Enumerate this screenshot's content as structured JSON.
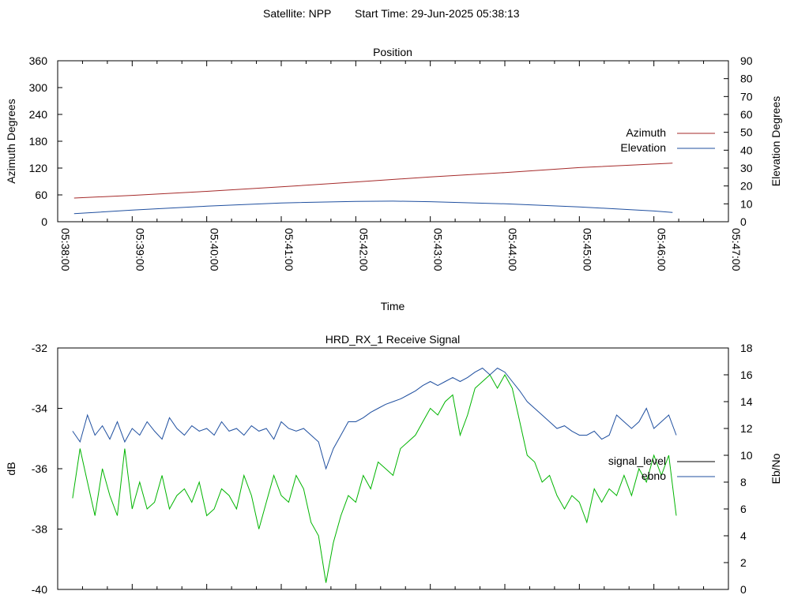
{
  "header": {
    "satellite_label": "Satellite: NPP",
    "start_time_label": "Start Time: 29-Jun-2025 05:38:13"
  },
  "colors": {
    "azimuth": "#a52a2a",
    "elevation": "#1f4f9f",
    "signal_level": "#00b400",
    "ebno": "#1f4f9f",
    "signal_level_legend": "#000000"
  },
  "chart_data": [
    {
      "type": "line",
      "title": "Position",
      "xlabel": "Time",
      "ylabel": "Azimuth Degrees",
      "y2label": "Elevation Degrees",
      "x_ticks": [
        "05:38:00",
        "05:39:00",
        "05:40:00",
        "05:41:00",
        "05:42:00",
        "05:43:00",
        "05:44:00",
        "05:45:00",
        "05:46:00",
        "05:47:00"
      ],
      "y_ticks": [
        "0",
        "60",
        "120",
        "180",
        "240",
        "300",
        "360"
      ],
      "y2_ticks": [
        "0",
        "10",
        "20",
        "30",
        "40",
        "50",
        "60",
        "70",
        "80",
        "90"
      ],
      "ylim": [
        0,
        360
      ],
      "y2lim": [
        0,
        90
      ],
      "xlim_minutes": [
        0,
        9
      ],
      "grid": false,
      "legend_position": "right",
      "series": [
        {
          "name": "Azimuth",
          "axis": "y",
          "x_minutes": [
            0.22,
            1.0,
            2.0,
            3.0,
            4.0,
            5.0,
            6.0,
            7.0,
            8.0,
            8.25
          ],
          "values": [
            53,
            59,
            68,
            78,
            89,
            100,
            110,
            121,
            129,
            131
          ]
        },
        {
          "name": "Elevation",
          "axis": "y2",
          "x_minutes": [
            0.22,
            1.0,
            2.0,
            3.0,
            4.0,
            4.5,
            5.0,
            6.0,
            7.0,
            8.0,
            8.25
          ],
          "values": [
            4.5,
            6.5,
            8.7,
            10.5,
            11.4,
            11.5,
            11.2,
            10.0,
            8.3,
            6.0,
            5.2
          ]
        }
      ]
    },
    {
      "type": "line",
      "title": "HRD_RX_1 Receive Signal",
      "ylabel": "dB",
      "y2label": "Eb/No",
      "y_ticks": [
        "-32",
        "-34",
        "-36",
        "-38",
        "-40"
      ],
      "y2_ticks": [
        "0",
        "2",
        "4",
        "6",
        "8",
        "10",
        "12",
        "14",
        "16",
        "18"
      ],
      "ylim": [
        -40,
        -32
      ],
      "y2lim": [
        0,
        18
      ],
      "xlim_minutes": [
        0,
        9
      ],
      "grid": false,
      "legend_position": "right",
      "series": [
        {
          "name": "signal_level",
          "axis": "y2",
          "x_minutes": [
            0.2,
            0.3,
            0.4,
            0.5,
            0.6,
            0.7,
            0.8,
            0.9,
            1.0,
            1.1,
            1.2,
            1.3,
            1.4,
            1.5,
            1.6,
            1.7,
            1.8,
            1.9,
            2.0,
            2.1,
            2.2,
            2.3,
            2.4,
            2.5,
            2.6,
            2.7,
            2.8,
            2.9,
            3.0,
            3.1,
            3.2,
            3.3,
            3.4,
            3.5,
            3.6,
            3.7,
            3.8,
            3.9,
            4.0,
            4.1,
            4.2,
            4.3,
            4.4,
            4.5,
            4.6,
            4.7,
            4.8,
            4.9,
            5.0,
            5.1,
            5.2,
            5.3,
            5.4,
            5.5,
            5.6,
            5.7,
            5.8,
            5.9,
            6.0,
            6.1,
            6.2,
            6.3,
            6.4,
            6.5,
            6.6,
            6.7,
            6.8,
            6.9,
            7.0,
            7.1,
            7.2,
            7.3,
            7.4,
            7.5,
            7.6,
            7.7,
            7.8,
            7.9,
            8.0,
            8.1,
            8.2,
            8.3
          ],
          "values": [
            6.8,
            10.5,
            8.0,
            5.5,
            9.0,
            7.0,
            5.5,
            10.5,
            6.0,
            8.0,
            6.0,
            6.5,
            8.5,
            6.0,
            7.0,
            7.5,
            6.5,
            8.0,
            5.5,
            6.0,
            7.5,
            7.0,
            6.0,
            8.5,
            7.0,
            4.5,
            6.5,
            8.5,
            7.0,
            6.5,
            8.5,
            7.5,
            5.0,
            4.0,
            0.5,
            3.5,
            5.5,
            7.0,
            6.5,
            8.5,
            7.5,
            9.5,
            9.0,
            8.5,
            10.5,
            11.0,
            11.5,
            12.5,
            13.5,
            13.0,
            14.0,
            14.5,
            11.5,
            13.0,
            15.0,
            15.5,
            16.0,
            15.0,
            16.0,
            15.0,
            12.5,
            10.0,
            9.5,
            8.0,
            8.5,
            7.0,
            6.0,
            7.0,
            6.5,
            5.0,
            7.5,
            6.5,
            7.5,
            7.0,
            8.5,
            7.0,
            9.0,
            8.0,
            10.0,
            8.5,
            10.0,
            5.5
          ]
        },
        {
          "name": "ebno",
          "axis": "y2",
          "x_minutes": [
            0.2,
            0.3,
            0.4,
            0.5,
            0.6,
            0.7,
            0.8,
            0.9,
            1.0,
            1.1,
            1.2,
            1.3,
            1.4,
            1.5,
            1.6,
            1.7,
            1.8,
            1.9,
            2.0,
            2.1,
            2.2,
            2.3,
            2.4,
            2.5,
            2.6,
            2.7,
            2.8,
            2.9,
            3.0,
            3.1,
            3.2,
            3.3,
            3.4,
            3.5,
            3.6,
            3.7,
            3.8,
            3.9,
            4.0,
            4.1,
            4.2,
            4.3,
            4.4,
            4.5,
            4.6,
            4.7,
            4.8,
            4.9,
            5.0,
            5.1,
            5.2,
            5.3,
            5.4,
            5.5,
            5.6,
            5.7,
            5.8,
            5.9,
            6.0,
            6.1,
            6.2,
            6.3,
            6.4,
            6.5,
            6.6,
            6.7,
            6.8,
            6.9,
            7.0,
            7.1,
            7.2,
            7.3,
            7.4,
            7.5,
            7.6,
            7.7,
            7.8,
            7.9,
            8.0,
            8.1,
            8.2,
            8.3
          ],
          "values": [
            11.8,
            11.0,
            13.0,
            11.5,
            12.2,
            11.2,
            12.5,
            11.0,
            12.0,
            11.5,
            12.5,
            11.8,
            11.2,
            12.8,
            12.0,
            11.5,
            12.2,
            11.8,
            12.0,
            11.5,
            12.5,
            11.8,
            12.0,
            11.5,
            12.2,
            11.8,
            12.0,
            11.2,
            12.5,
            12.0,
            11.8,
            12.0,
            11.5,
            11.0,
            9.0,
            10.5,
            11.5,
            12.5,
            12.5,
            12.8,
            13.2,
            13.5,
            13.8,
            14.0,
            14.2,
            14.5,
            14.8,
            15.2,
            15.5,
            15.2,
            15.5,
            15.8,
            15.5,
            15.8,
            16.2,
            16.5,
            16.0,
            16.5,
            16.2,
            15.5,
            14.8,
            14.0,
            13.5,
            13.0,
            12.5,
            12.0,
            12.2,
            11.8,
            11.5,
            11.5,
            11.8,
            11.2,
            11.5,
            13.0,
            12.5,
            12.0,
            12.5,
            13.5,
            12.0,
            12.5,
            13.0,
            11.5
          ]
        }
      ]
    }
  ]
}
